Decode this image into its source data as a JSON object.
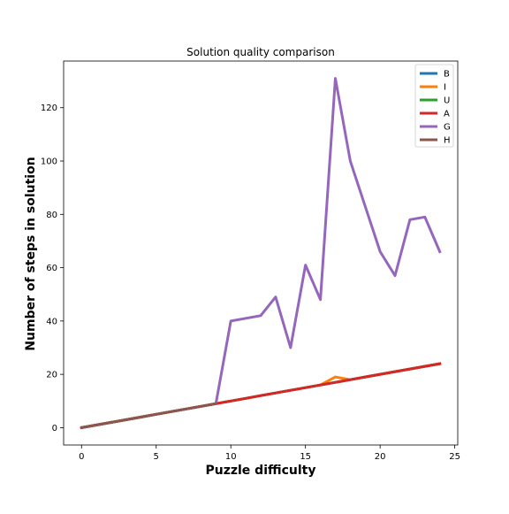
{
  "chart_data": {
    "type": "line",
    "title": "Solution quality comparison",
    "xlabel": "Puzzle difficulty",
    "ylabel": "Number of steps in solution",
    "xlim": [
      -1.2,
      25.2
    ],
    "ylim": [
      -6.5,
      137.5
    ],
    "xticks": [
      0,
      5,
      10,
      15,
      20,
      25
    ],
    "yticks": [
      0,
      20,
      40,
      60,
      80,
      100,
      120
    ],
    "grid": false,
    "legend_position": "top-right",
    "x": [
      0,
      1,
      2,
      3,
      4,
      5,
      6,
      7,
      8,
      9,
      10,
      11,
      12,
      13,
      14,
      15,
      16,
      17,
      18,
      19,
      20,
      21,
      22,
      23,
      24
    ],
    "series": [
      {
        "name": "B",
        "color": "#1f77b4",
        "values": [
          0,
          1,
          2,
          3,
          4,
          5,
          6,
          7,
          8,
          9,
          10,
          11,
          12,
          13,
          14,
          15,
          16,
          17,
          18,
          19,
          20,
          21,
          22,
          23,
          24
        ]
      },
      {
        "name": "I",
        "color": "#ff7f0e",
        "values": [
          0,
          1,
          2,
          3,
          4,
          5,
          6,
          7,
          8,
          9,
          10,
          11,
          12,
          13,
          14,
          15,
          16,
          19,
          18,
          19,
          20,
          21,
          22,
          23,
          24
        ]
      },
      {
        "name": "U",
        "color": "#2ca02c",
        "values": [
          0,
          1,
          2,
          3,
          4,
          5,
          6,
          7,
          8,
          9,
          10,
          11,
          12,
          13,
          14,
          15,
          16,
          17,
          18,
          19,
          20,
          21,
          22,
          23,
          24
        ]
      },
      {
        "name": "A",
        "color": "#d62728",
        "values": [
          0,
          1,
          2,
          3,
          4,
          5,
          6,
          7,
          8,
          9,
          10,
          11,
          12,
          13,
          14,
          15,
          16,
          17,
          18,
          19,
          20,
          21,
          22,
          23,
          24
        ]
      },
      {
        "name": "G",
        "color": "#9467bd",
        "values": [
          0,
          1,
          2,
          3,
          4,
          5,
          6,
          7,
          8,
          9,
          40,
          41,
          42,
          49,
          30,
          61,
          48,
          131,
          100,
          83,
          66,
          57,
          78,
          79,
          66
        ]
      },
      {
        "name": "H",
        "color": "#8c564b",
        "values": [
          0,
          1,
          2,
          3,
          4,
          5,
          6,
          7,
          8,
          9,
          null,
          null,
          null,
          null,
          null,
          null,
          null,
          null,
          null,
          null,
          null,
          null,
          null,
          null,
          null
        ]
      }
    ]
  }
}
